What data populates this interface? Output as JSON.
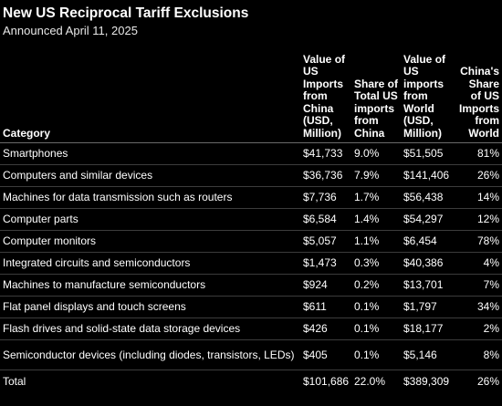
{
  "title": "New US Reciprocal Tariff Exclusions",
  "subtitle": "Announced April 11, 2025",
  "chart_data": {
    "type": "table",
    "columns": [
      "Category",
      "Value of US Imports from China (USD, Million)",
      "Share of Total US imports from China",
      "Value of US imports from World (USD, Million)",
      "China's Share of US Imports from World"
    ],
    "rows": [
      [
        "Smartphones",
        "$41,733",
        "9.0%",
        "$51,505",
        "81%"
      ],
      [
        "Computers and similar devices",
        "$36,736",
        "7.9%",
        "$141,406",
        "26%"
      ],
      [
        "Machines for data transmission such as routers",
        "$7,736",
        "1.7%",
        "$56,438",
        "14%"
      ],
      [
        "Computer parts",
        "$6,584",
        "1.4%",
        "$54,297",
        "12%"
      ],
      [
        "Computer monitors",
        "$5,057",
        "1.1%",
        "$6,454",
        "78%"
      ],
      [
        "Integrated circuits and semiconductors",
        "$1,473",
        "0.3%",
        "$40,386",
        "4%"
      ],
      [
        "Machines to manufacture semiconductors",
        "$924",
        "0.2%",
        "$13,701",
        "7%"
      ],
      [
        "Flat panel displays and touch screens",
        "$611",
        "0.1%",
        "$1,797",
        "34%"
      ],
      [
        "Flash drives and solid-state data storage devices",
        "$426",
        "0.1%",
        "$18,177",
        "2%"
      ],
      [
        "Semiconductor devices (including diodes, transistors, LEDs)",
        "$405",
        "0.1%",
        "$5,146",
        "8%"
      ],
      [
        "Total",
        "$101,686",
        "22.0%",
        "$389,309",
        "26%"
      ]
    ]
  }
}
